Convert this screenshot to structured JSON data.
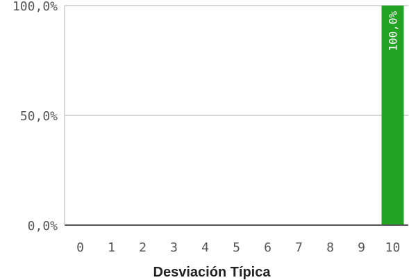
{
  "chart_data": {
    "type": "bar",
    "title": "",
    "xlabel": "Desviación Típica",
    "ylabel": "",
    "categories": [
      "0",
      "1",
      "2",
      "3",
      "4",
      "5",
      "6",
      "7",
      "8",
      "9",
      "10"
    ],
    "values": [
      0,
      0,
      0,
      0,
      0,
      0,
      0,
      0,
      0,
      0,
      100
    ],
    "data_labels": [
      "",
      "",
      "",
      "",
      "",
      "",
      "",
      "",
      "",
      "",
      "100,0%"
    ],
    "ylim": [
      0,
      100
    ],
    "yticks": [
      {
        "value": 0,
        "label": "0,0%"
      },
      {
        "value": 50,
        "label": "50,0%"
      },
      {
        "value": 100,
        "label": "100,0%"
      }
    ],
    "grid": true,
    "bar_color": "#22a323",
    "grid_color": "#cccccc",
    "axis_color": "#555555"
  }
}
